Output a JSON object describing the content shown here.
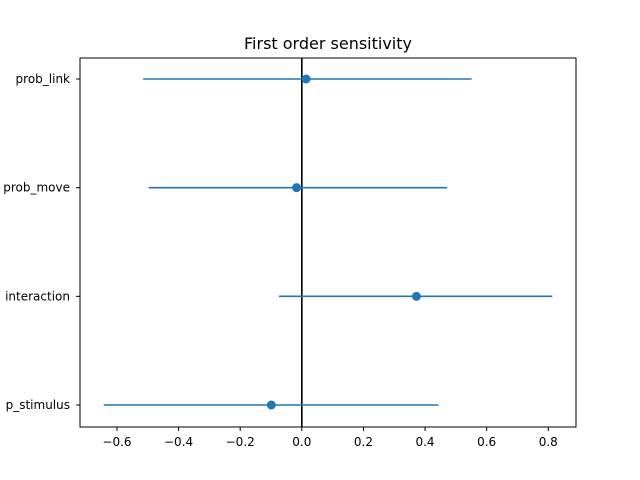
{
  "chart_data": {
    "type": "errorbar",
    "title": "First order sensitivity",
    "xlabel": "",
    "ylabel": "",
    "xlim": [
      -0.72,
      0.89
    ],
    "xticks": [
      -0.6,
      -0.4,
      -0.2,
      0.0,
      0.2,
      0.4,
      0.6,
      0.8
    ],
    "xtick_labels": [
      "−0.6",
      "−0.4",
      "−0.2",
      "0.0",
      "0.2",
      "0.4",
      "0.6",
      "0.8"
    ],
    "categories": [
      "prob_link",
      "prob_move",
      "interaction",
      "p_stimulus"
    ],
    "category_labels": [
      "prob_link",
      "prob_move",
      "interaction",
      "p_stimulus"
    ],
    "series": [
      {
        "values": [
          0.014,
          -0.017,
          0.372,
          -0.099
        ],
        "lower": [
          -0.515,
          -0.497,
          -0.074,
          -0.643
        ],
        "upper": [
          0.551,
          0.472,
          0.813,
          0.444
        ]
      }
    ],
    "reference_line_x": 0.0,
    "grid": false,
    "colors": {
      "series": "#1f77b4",
      "reference": "#000000",
      "axes": "#000000"
    }
  }
}
